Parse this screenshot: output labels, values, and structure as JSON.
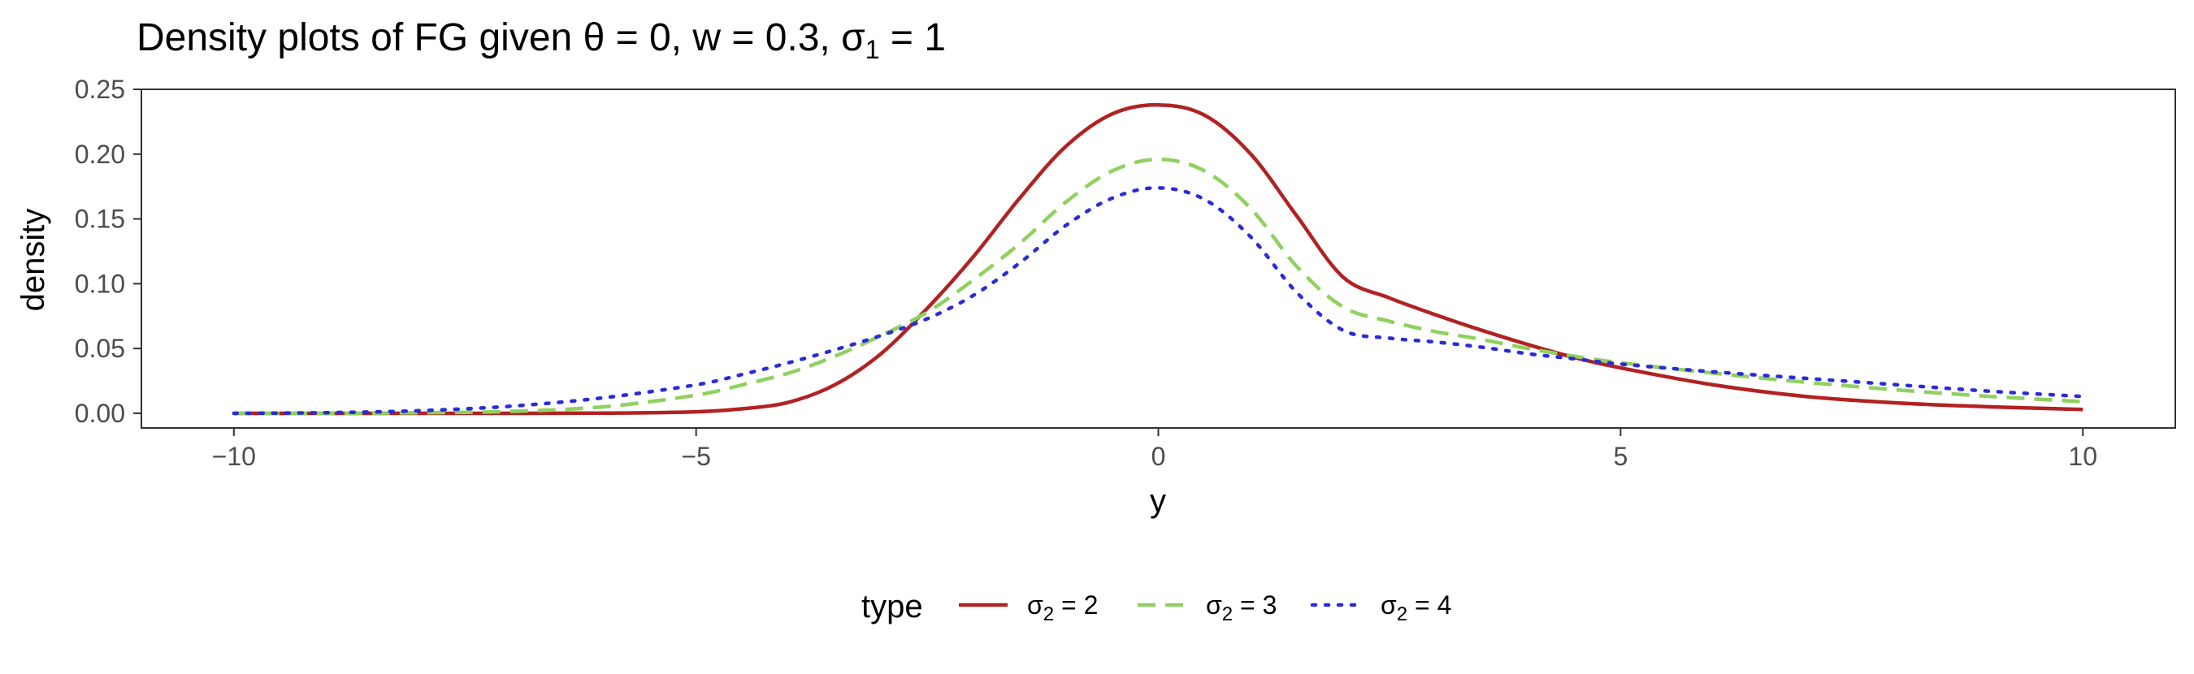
{
  "chart_data": {
    "type": "line",
    "title": "Density plots of FG given θ = 0, w = 0.3, σ",
    "title_parts": {
      "main": "Density plots of FG given θ = 0, w = 0.3, σ",
      "subscript": "1",
      "tail": " = 1"
    },
    "xlabel": "y",
    "ylabel": "density",
    "xlim": [
      -11,
      11
    ],
    "ylim": [
      -0.0113,
      0.25
    ],
    "x_ticks": [
      -10,
      -5,
      0,
      5,
      10
    ],
    "x_tick_labels": [
      "−10",
      "−5",
      "0",
      "5",
      "10"
    ],
    "y_ticks": [
      0,
      0.05,
      0.1,
      0.15,
      0.2,
      0.25
    ],
    "y_tick_labels": [
      "0.00",
      "0.05",
      "0.10",
      "0.15",
      "0.20",
      "0.25"
    ],
    "grid": false,
    "legend": {
      "position": "bottom",
      "title": "type",
      "entries": [
        {
          "symbol": "σ",
          "subscript": "2",
          "tail": " = 2"
        },
        {
          "symbol": "σ",
          "subscript": "2",
          "tail": " = 3"
        },
        {
          "symbol": "σ",
          "subscript": "2",
          "tail": " = 4"
        }
      ]
    },
    "x": [
      -10,
      -9,
      -8,
      -7,
      -6,
      -5,
      -4.5,
      -4,
      -3.5,
      -3,
      -2.5,
      -2,
      -1.5,
      -1,
      -0.5,
      0,
      0.5,
      1,
      1.5,
      2,
      2.5,
      3,
      3.5,
      4,
      4.5,
      5,
      6,
      7,
      8,
      9,
      10
    ],
    "series": [
      {
        "legend_index": 0,
        "color": "#b22222",
        "dash": "solid",
        "values": [
          0,
          0,
          0,
          0,
          0.0001,
          0.0012,
          0.0035,
          0.0085,
          0.022,
          0.046,
          0.081,
          0.121,
          0.166,
          0.206,
          0.231,
          0.238,
          0.23,
          0.2,
          0.152,
          0.105,
          0.089,
          0.076,
          0.064,
          0.053,
          0.043,
          0.035,
          0.022,
          0.013,
          0.008,
          0.005,
          0.003
        ]
      },
      {
        "legend_index": 1,
        "color": "#8fd160",
        "dash": "dashed",
        "values": [
          0,
          0.0001,
          0.0004,
          0.0015,
          0.005,
          0.014,
          0.022,
          0.031,
          0.044,
          0.06,
          0.078,
          0.103,
          0.131,
          0.163,
          0.187,
          0.196,
          0.187,
          0.158,
          0.113,
          0.082,
          0.071,
          0.063,
          0.057,
          0.05,
          0.044,
          0.039,
          0.031,
          0.024,
          0.018,
          0.013,
          0.009
        ]
      },
      {
        "legend_index": 2,
        "color": "#2b2bd9",
        "dash": "dotted",
        "values": [
          0,
          0.0005,
          0.002,
          0.0055,
          0.012,
          0.022,
          0.03,
          0.039,
          0.049,
          0.06,
          0.073,
          0.091,
          0.116,
          0.145,
          0.166,
          0.174,
          0.165,
          0.136,
          0.093,
          0.064,
          0.058,
          0.055,
          0.051,
          0.046,
          0.042,
          0.038,
          0.032,
          0.027,
          0.022,
          0.017,
          0.013
        ]
      }
    ]
  }
}
